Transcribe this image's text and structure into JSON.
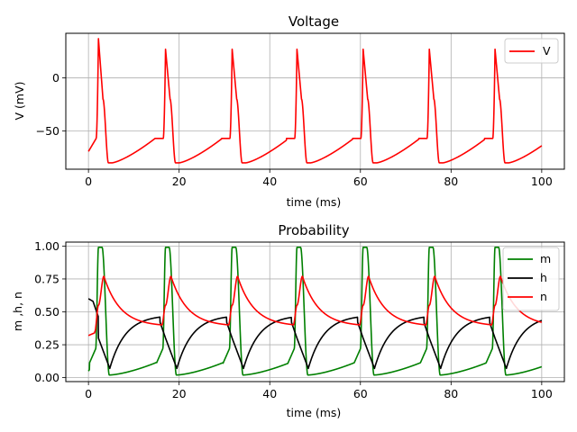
{
  "chart_data": [
    {
      "type": "line",
      "title": "Voltage",
      "xlabel": "time (ms)",
      "ylabel": "V (mV)",
      "xlim": [
        -5,
        105
      ],
      "ylim": [
        -86,
        42
      ],
      "xticks": [
        0,
        20,
        40,
        60,
        80,
        100
      ],
      "yticks": [
        -50,
        0
      ],
      "grid": true,
      "legend_position": "top-right",
      "spike_times": [
        2.2,
        17.0,
        31.7,
        46.0,
        60.6,
        75.2,
        89.7
      ],
      "spike_peaks": [
        37,
        27,
        27,
        27,
        27,
        27,
        27
      ],
      "series": [
        {
          "name": "V",
          "color": "#ff0000",
          "kind": "voltage"
        }
      ]
    },
    {
      "type": "line",
      "title": "Probability",
      "xlabel": "time (ms)",
      "ylabel": "m ,h, n",
      "xlim": [
        -5,
        105
      ],
      "ylim": [
        -0.03,
        1.03
      ],
      "xticks": [
        0,
        20,
        40,
        60,
        80,
        100
      ],
      "yticks": [
        0.0,
        0.25,
        0.5,
        0.75,
        1.0
      ],
      "grid": true,
      "legend_position": "top-right",
      "series": [
        {
          "name": "m",
          "color": "#008000",
          "kind": "m"
        },
        {
          "name": "h",
          "color": "#000000",
          "kind": "h"
        },
        {
          "name": "n",
          "color": "#ff0000",
          "kind": "n"
        }
      ]
    }
  ]
}
